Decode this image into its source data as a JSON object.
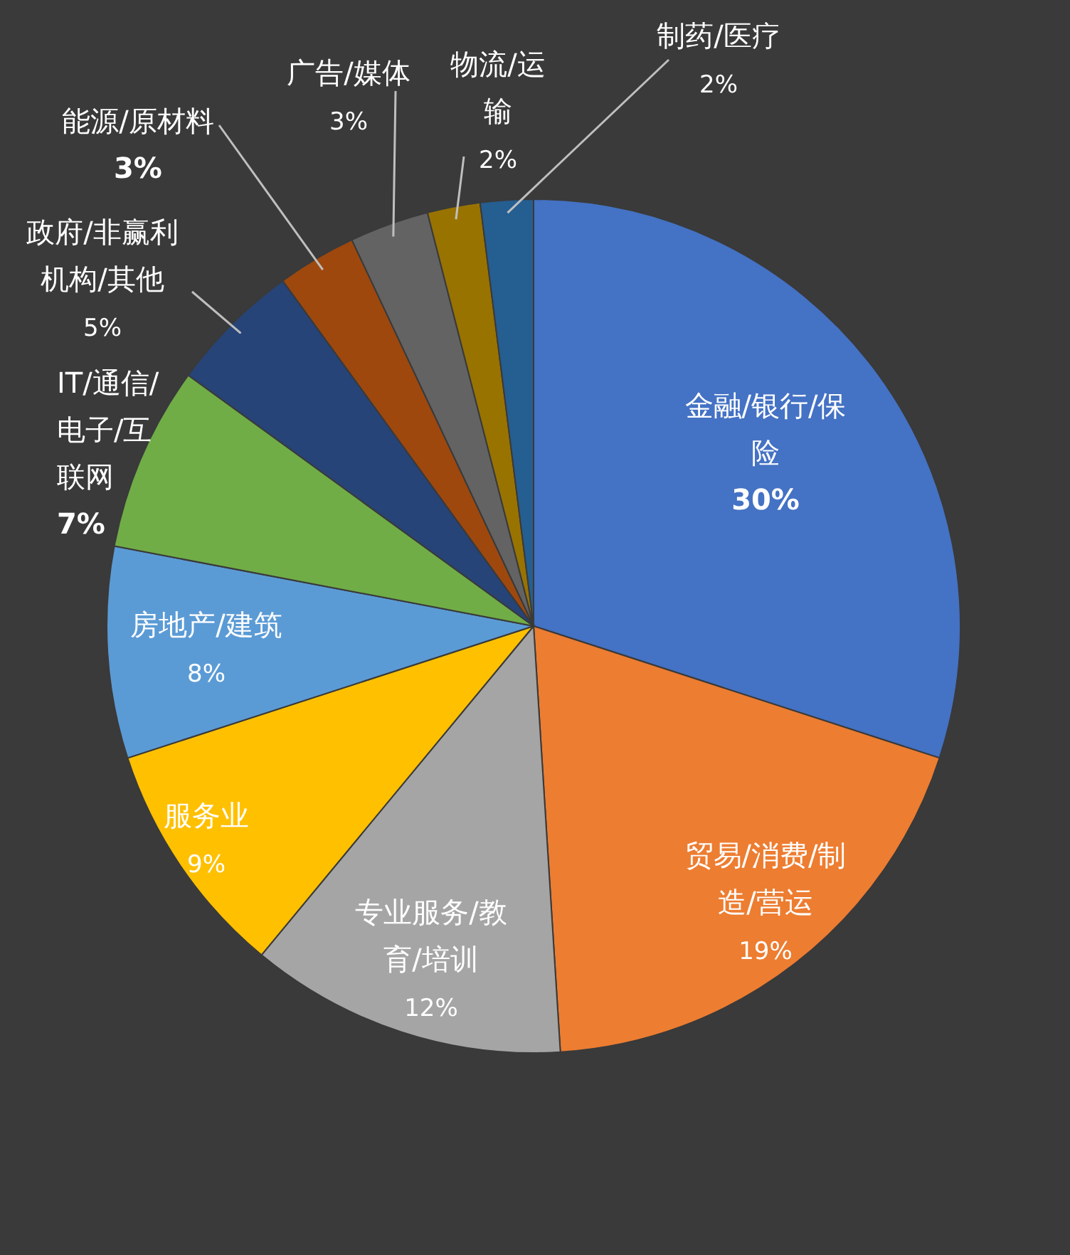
{
  "chart_data": {
    "type": "pie",
    "categories": [
      "金融/银行/保险",
      "贸易/消费/制造/营运",
      "专业服务/教育/培训",
      "服务业",
      "房地产/建筑",
      "IT/通信/电子/互联网",
      "政府/非赢利机构/其他",
      "能源/原材料",
      "广告/媒体",
      "物流/运输",
      "制药/医疗"
    ],
    "values": [
      30,
      19,
      12,
      9,
      8,
      7,
      5,
      3,
      3,
      2,
      2
    ],
    "colors": [
      "#4472c4",
      "#ed7d31",
      "#a5a5a5",
      "#ffc000",
      "#5b9bd5",
      "#70ad47",
      "#264478",
      "#9e480e",
      "#636363",
      "#997300",
      "#255e91"
    ],
    "value_labels": [
      "30%",
      "19%",
      "12%",
      "9%",
      "8%",
      "7%",
      "5%",
      "3%",
      "3%",
      "2%",
      "2%"
    ]
  }
}
